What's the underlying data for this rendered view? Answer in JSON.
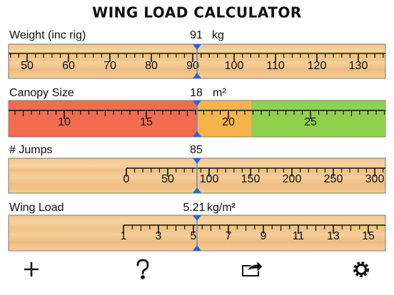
{
  "header": {
    "title": "WING LOAD CALCULATOR"
  },
  "rulers": [
    {
      "label": "Weight (inc rig)",
      "value": "91",
      "unit": "kg",
      "ticks": [
        "50",
        "60",
        "70",
        "80",
        "90",
        "100",
        "110",
        "120",
        "130"
      ]
    },
    {
      "label": "Canopy Size",
      "value": "18",
      "unit": "m²",
      "ticks": [
        "10",
        "15",
        "20",
        "25"
      ]
    },
    {
      "label": "# Jumps",
      "value": "85",
      "ticks": [
        "0",
        "50",
        "100",
        "150",
        "200",
        "250",
        "300"
      ]
    },
    {
      "label": "Wing Load",
      "value": "5.21",
      "unit": "kg/m²",
      "ticks": [
        "1",
        "3",
        "5",
        "7",
        "9",
        "11",
        "13",
        "15"
      ]
    }
  ]
}
